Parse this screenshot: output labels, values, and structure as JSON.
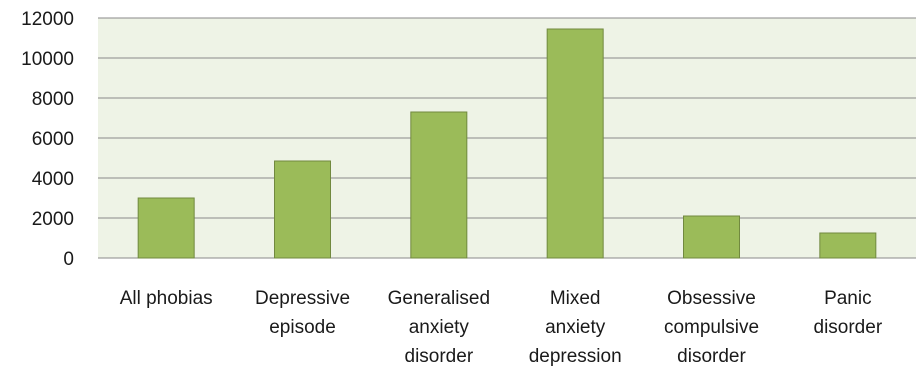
{
  "chart_data": {
    "type": "bar",
    "title": "",
    "xlabel": "",
    "ylabel": "",
    "categories": [
      "All phobias",
      "Depressive episode",
      "Generalised anxiety disorder",
      "Mixed anxiety depression",
      "Obsessive compulsive disorder",
      "Panic disorder"
    ],
    "category_label_lines": [
      [
        "All phobias"
      ],
      [
        "Depressive",
        "episode"
      ],
      [
        "Generalised",
        "anxiety",
        "disorder"
      ],
      [
        "Mixed",
        "anxiety",
        "depression"
      ],
      [
        "Obsessive",
        "compulsive",
        "disorder"
      ],
      [
        "Panic",
        "disorder"
      ]
    ],
    "values": [
      3000,
      4850,
      7300,
      11450,
      2100,
      1250
    ],
    "ylim": [
      0,
      12000
    ],
    "yticks": [
      "0",
      "2000",
      "4000",
      "6000",
      "8000",
      "10000",
      "12000"
    ],
    "grid": true,
    "legend": "none",
    "colors": {
      "plot_background": "#eef3e6",
      "bar_fill": "#9bbb59",
      "bar_stroke": "#71893f",
      "grid": "#8a8a8a"
    }
  }
}
